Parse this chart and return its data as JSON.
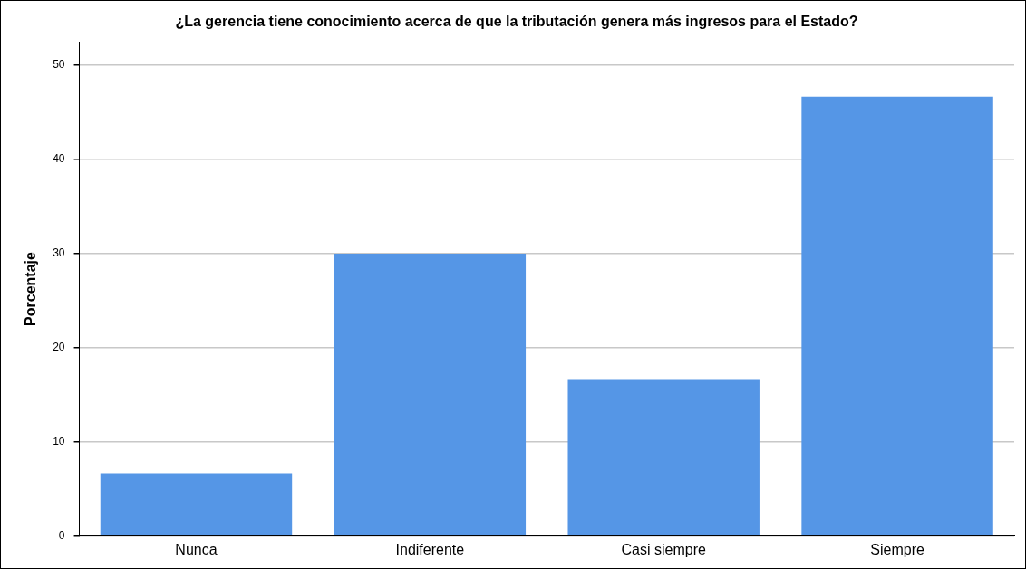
{
  "chart_data": {
    "type": "bar",
    "title": "¿La gerencia tiene conocimiento acerca de que la tributación genera más ingresos para el Estado?",
    "ylabel": "Porcentaje",
    "categories": [
      "Nunca",
      "Indiferente",
      "Casi siempre",
      "Siempre"
    ],
    "values": [
      6.67,
      30,
      16.67,
      46.67
    ],
    "color": "#5596e6",
    "ylim": [
      0,
      52.5
    ],
    "yticks": [
      0,
      10,
      20,
      30,
      40,
      50
    ],
    "grid": "y",
    "legend": false
  }
}
